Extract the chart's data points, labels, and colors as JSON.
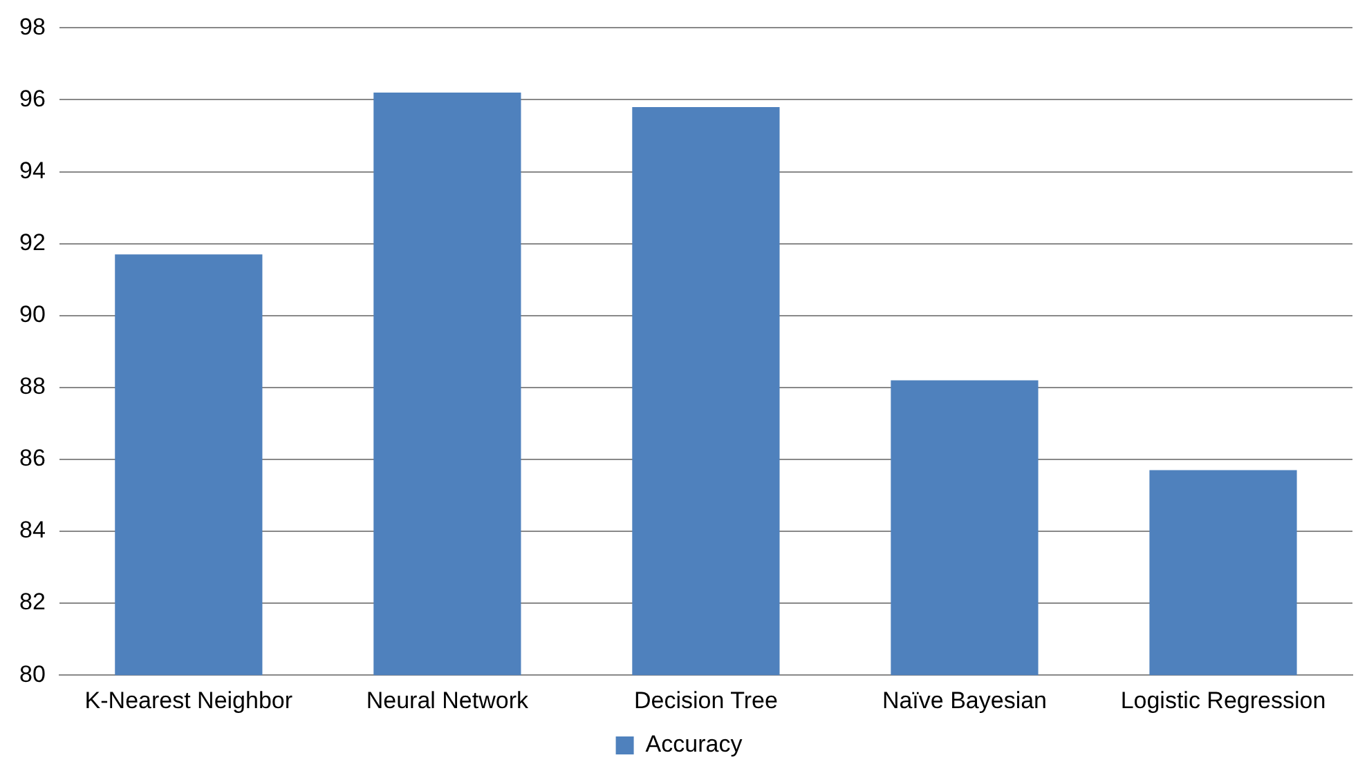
{
  "chart_data": {
    "type": "bar",
    "categories": [
      "K-Nearest Neighbor",
      "Neural Network",
      "Decision Tree",
      "Naïve Bayesian",
      "Logistic Regression"
    ],
    "series": [
      {
        "name": "Accuracy",
        "color": "#4f81bd",
        "values": [
          91.7,
          96.2,
          95.8,
          88.2,
          85.7
        ]
      }
    ],
    "ylim": [
      80,
      98
    ],
    "yticks": [
      80,
      82,
      84,
      86,
      88,
      90,
      92,
      94,
      96,
      98
    ],
    "grid": "y",
    "legend": "bottom"
  }
}
